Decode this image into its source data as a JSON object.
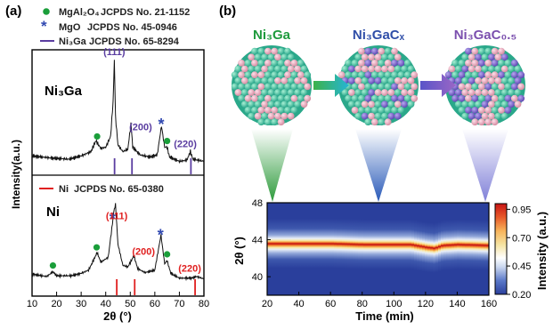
{
  "panel_a": {
    "label": "(a)",
    "legend": [
      {
        "label": "MgAl₂O₄",
        "card": "JCPDS No. 21-1152",
        "marker": "dot",
        "color": "#1a9e3a"
      },
      {
        "label": "MgO",
        "card": "JCPDS No. 45-0946",
        "marker": "star",
        "color": "#3048b0"
      },
      {
        "label": "Ni₃Ga",
        "card": "JCPDS No. 65-8294",
        "marker": "line",
        "color": "#5a3da0"
      }
    ],
    "legend_ni": {
      "label": "Ni",
      "card": "JCPDS No. 65-0380",
      "color": "#e02020"
    },
    "top": {
      "name": "Ni₃Ga",
      "peak_labels": [
        {
          "text": "(111)",
          "x": 43.5,
          "color": "#5a3da0"
        },
        {
          "text": "(200)",
          "x": 50.6,
          "color": "#5a3da0"
        },
        {
          "text": "(220)",
          "x": 74.6,
          "color": "#5a3da0"
        }
      ],
      "reference_lines": [
        43.6,
        50.7,
        74.7
      ]
    },
    "bottom": {
      "name": "Ni",
      "peak_labels": [
        {
          "text": "(111)",
          "x": 44.5,
          "color": "#e02020"
        },
        {
          "text": "(200)",
          "x": 51.8,
          "color": "#e02020"
        },
        {
          "text": "(220)",
          "x": 76.4,
          "color": "#e02020"
        }
      ],
      "reference_lines": [
        44.5,
        51.8,
        76.4
      ]
    },
    "chart_data": {
      "type": "line",
      "xlabel": "2θ (°)",
      "ylabel": "Intensity(a.u.)",
      "xlim": [
        10,
        80
      ],
      "xticks": [
        10,
        20,
        30,
        40,
        50,
        60,
        70,
        80
      ],
      "series": [
        {
          "name": "Ni₃Ga",
          "points": [
            [
              10,
              0.12
            ],
            [
              18,
              0.1
            ],
            [
              25,
              0.09
            ],
            [
              30,
              0.12
            ],
            [
              34,
              0.16
            ],
            [
              36,
              0.26
            ],
            [
              38,
              0.19
            ],
            [
              40,
              0.2
            ],
            [
              42,
              0.3
            ],
            [
              43,
              0.62
            ],
            [
              43.5,
              1.0
            ],
            [
              44,
              0.48
            ],
            [
              45,
              0.22
            ],
            [
              47,
              0.16
            ],
            [
              49,
              0.18
            ],
            [
              50.3,
              0.42
            ],
            [
              51,
              0.2
            ],
            [
              54,
              0.13
            ],
            [
              58,
              0.11
            ],
            [
              61,
              0.13
            ],
            [
              62.7,
              0.4
            ],
            [
              64,
              0.2
            ],
            [
              65,
              0.2
            ],
            [
              66,
              0.11
            ],
            [
              70,
              0.07
            ],
            [
              73,
              0.08
            ],
            [
              74.5,
              0.16
            ],
            [
              75.5,
              0.09
            ],
            [
              80,
              0.07
            ]
          ]
        },
        {
          "name": "Ni",
          "points": [
            [
              10,
              0.13
            ],
            [
              16,
              0.1
            ],
            [
              18.5,
              0.16
            ],
            [
              20,
              0.11
            ],
            [
              26,
              0.11
            ],
            [
              30,
              0.14
            ],
            [
              33,
              0.18
            ],
            [
              35,
              0.3
            ],
            [
              36.5,
              0.4
            ],
            [
              38,
              0.28
            ],
            [
              41,
              0.34
            ],
            [
              42.5,
              0.7
            ],
            [
              43.3,
              0.92
            ],
            [
              44,
              1.0
            ],
            [
              45,
              0.5
            ],
            [
              47,
              0.24
            ],
            [
              49,
              0.22
            ],
            [
              51.5,
              0.36
            ],
            [
              53,
              0.2
            ],
            [
              56,
              0.15
            ],
            [
              60,
              0.18
            ],
            [
              62.5,
              0.62
            ],
            [
              64,
              0.26
            ],
            [
              65,
              0.3
            ],
            [
              66.5,
              0.14
            ],
            [
              70,
              0.08
            ],
            [
              75,
              0.08
            ],
            [
              77,
              0.1
            ],
            [
              80,
              0.07
            ]
          ]
        }
      ],
      "markers": [
        {
          "series": "Ni₃Ga",
          "type": "dot",
          "x": 36.5
        },
        {
          "series": "Ni₃Ga",
          "type": "star",
          "x": 62.6
        },
        {
          "series": "Ni₃Ga",
          "type": "dot",
          "x": 65.0
        },
        {
          "series": "Ni",
          "type": "dot",
          "x": 18.5
        },
        {
          "series": "Ni",
          "type": "dot",
          "x": 36.3
        },
        {
          "series": "Ni",
          "type": "star",
          "x": 42.8
        },
        {
          "series": "Ni",
          "type": "star",
          "x": 62.3
        },
        {
          "series": "Ni",
          "type": "dot",
          "x": 65.0
        }
      ]
    }
  },
  "panel_b": {
    "label": "(b)",
    "stages": [
      {
        "label": "Ni₃Ga",
        "color": "#1e9a3c",
        "carbon_fraction": 0.0
      },
      {
        "label": "Ni₃GaCₓ",
        "color": "#2f4ea8",
        "carbon_fraction": 0.15
      },
      {
        "label": "Ni₃GaC₀.₅",
        "color": "#7b4fae",
        "carbon_fraction": 0.35
      }
    ],
    "heatmap": {
      "chart_data": {
        "type": "heatmap",
        "xlabel": "Time  (min)",
        "ylabel": "2θ (°)",
        "xlim": [
          20,
          160
        ],
        "ylim": [
          38,
          48
        ],
        "xticks": [
          20,
          40,
          60,
          80,
          100,
          120,
          140,
          160
        ],
        "yticks": [
          40,
          44,
          48
        ],
        "peak_center": [
          [
            20,
            43.6
          ],
          [
            40,
            43.6
          ],
          [
            60,
            43.6
          ],
          [
            80,
            43.5
          ],
          [
            100,
            43.5
          ],
          [
            110,
            43.5
          ],
          [
            120,
            43.2
          ],
          [
            125,
            43.1
          ],
          [
            130,
            43.4
          ],
          [
            140,
            43.5
          ],
          [
            160,
            43.4
          ]
        ],
        "colorbar": {
          "label": "Intensity (a.u.)",
          "ticks": [
            0.95,
            0.7,
            0.45,
            0.2
          ],
          "range": [
            0.2,
            1.0
          ],
          "colors": [
            "#2a3f9c",
            "#5a78c8",
            "#c9d6ee",
            "#ffffff",
            "#f5e3a0",
            "#f7b35a",
            "#e85a2a",
            "#c81414"
          ]
        }
      }
    }
  }
}
